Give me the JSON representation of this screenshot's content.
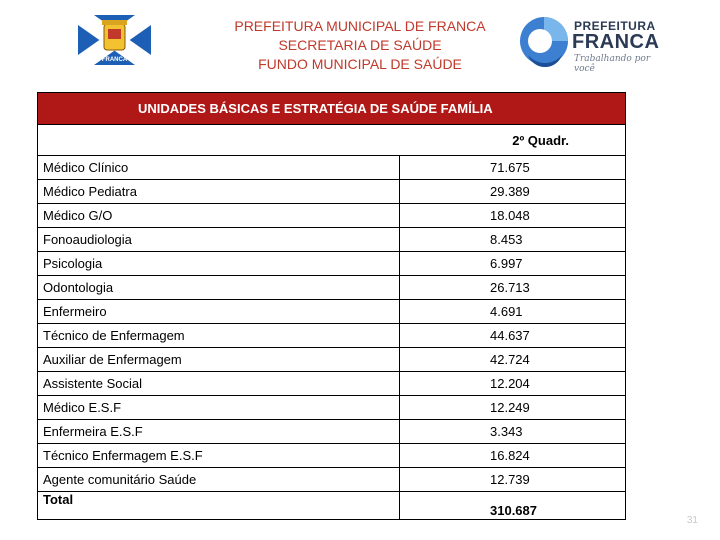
{
  "header": {
    "line1": "PREFEITURA MUNICIPAL DE FRANCA",
    "line2": "SECRETARIA DE SAÚDE",
    "line3": "FUNDO MUNICIPAL DE SAÚDE"
  },
  "flag_logo": {
    "caption": "FRANCA"
  },
  "city_logo": {
    "word1": "PREFEITURA",
    "word2": "FRANCA",
    "tagline": "Trabalhando por você"
  },
  "table": {
    "title": "UNIDADES BÁSICAS E ESTRATÉGIA DE SAÚDE FAMÍLIA",
    "period": "2º Quadr.",
    "rows": [
      {
        "label": "Médico Clínico",
        "value": "71.675"
      },
      {
        "label": "Médico Pediatra",
        "value": "29.389"
      },
      {
        "label": "Médico G/O",
        "value": "18.048"
      },
      {
        "label": "Fonoaudiologia",
        "value": "8.453"
      },
      {
        "label": "Psicologia",
        "value": "6.997"
      },
      {
        "label": "Odontologia",
        "value": "26.713"
      },
      {
        "label": "Enfermeiro",
        "value": "4.691"
      },
      {
        "label": "Técnico de Enfermagem",
        "value": "44.637"
      },
      {
        "label": "Auxiliar de Enfermagem",
        "value": "42.724"
      },
      {
        "label": "Assistente Social",
        "value": "12.204"
      },
      {
        "label": "Médico  E.S.F",
        "value": "12.249"
      },
      {
        "label": "Enfermeira E.S.F",
        "value": "3.343"
      },
      {
        "label": "Técnico Enfermagem E.S.F",
        "value": "16.824"
      },
      {
        "label": "Agente comunitário Saúde",
        "value": "12.739"
      }
    ],
    "total_label": "Total",
    "total_value": "310.687"
  },
  "colors": {
    "header_text": "#c0392b",
    "title_bar": "#b01818",
    "flag_blue": "#1d5fb4"
  },
  "page_number": "31"
}
